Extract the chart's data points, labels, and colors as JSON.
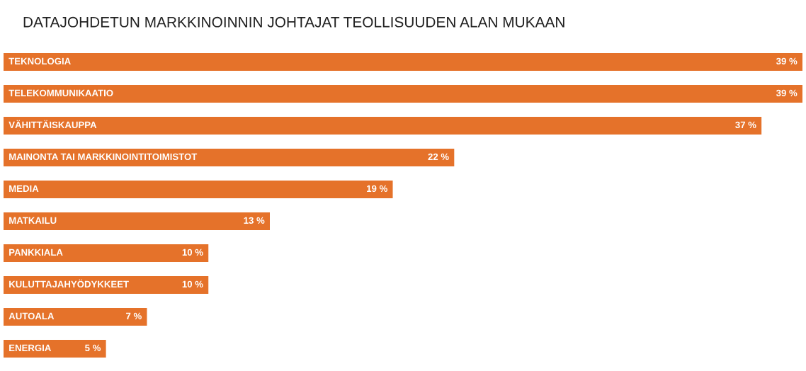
{
  "chart_data": {
    "type": "bar",
    "orientation": "horizontal",
    "title": "DATAJOHDETUN MARKKINOINNIN JOHTAJAT TEOLLISUUDEN ALAN MUKAAN",
    "categories": [
      "TEKNOLOGIA",
      "TELEKOMMUNIKAATIO",
      "VÄHITTÄISKAUPPA",
      "MAINONTA TAI MARKKINOINTITOIMISTOT",
      "MEDIA",
      "MATKAILU",
      "PANKKIALA",
      "KULUTTAJAHYÖDYKKEET",
      "AUTOALA",
      "ENERGIA"
    ],
    "values": [
      39,
      39,
      37,
      22,
      19,
      13,
      10,
      10,
      7,
      5
    ],
    "value_labels": [
      "39 %",
      "39 %",
      "37 %",
      "22 %",
      "19 %",
      "13 %",
      "10 %",
      "10 %",
      "7 %",
      "5 %"
    ],
    "color": "#e5722a",
    "xlim": [
      0,
      39
    ],
    "tick_labels": false
  }
}
